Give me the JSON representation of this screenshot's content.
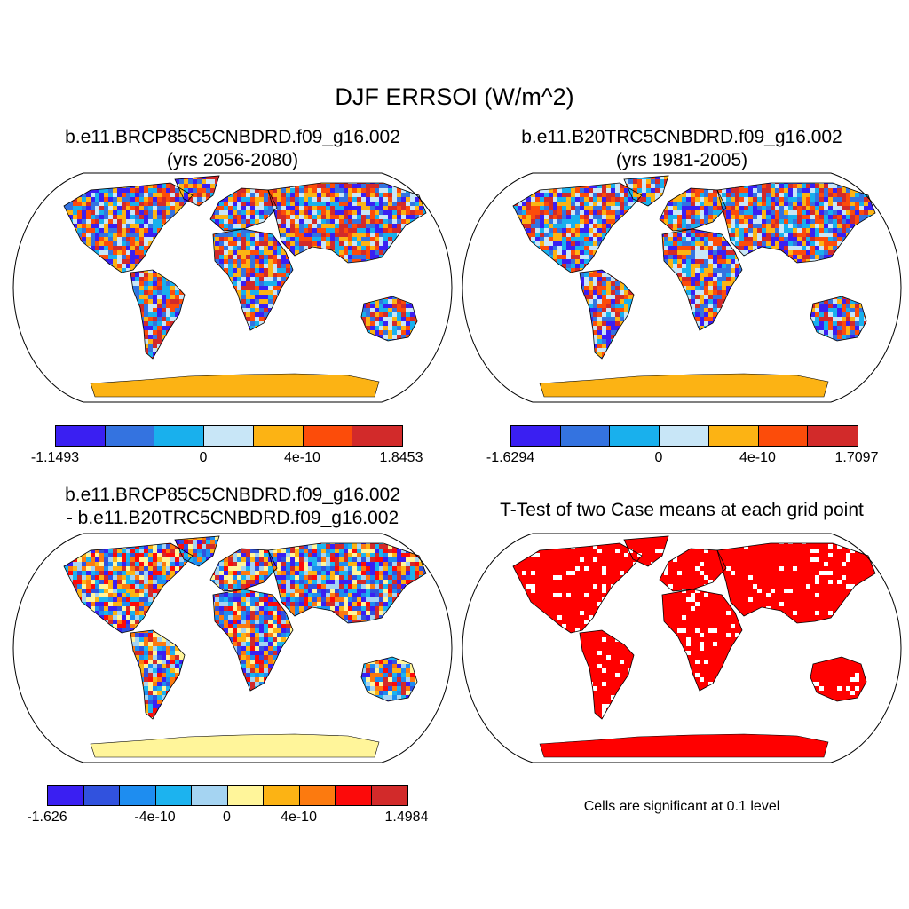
{
  "title": "DJF ERRSOI (W/m^2)",
  "panels": [
    {
      "line1": "b.e11.BRCP85C5CNBDRD.f09_g16.002",
      "line2": "(yrs 2056-2080)"
    },
    {
      "line1": "b.e11.B20TRC5CNBDRD.f09_g16.002",
      "line2": "(yrs 1981-2005)"
    },
    {
      "line1": "b.e11.BRCP85C5CNBDRD.f09_g16.002",
      "line2": "- b.e11.B20TRC5CNBDRD.f09_g16.002"
    },
    {
      "line1": "T-Test of two Case means at each grid point",
      "line2": ""
    }
  ],
  "colorbars": [
    {
      "colors": [
        "#3a1ff2",
        "#3473e0",
        "#19b0ed",
        "#c8e6f7",
        "#fcb314",
        "#fc4c0a",
        "#d22a2a"
      ],
      "ticks": [
        {
          "label": "-1.1493",
          "pos": 0
        },
        {
          "label": "0",
          "pos": 0.428
        },
        {
          "label": "4e-10",
          "pos": 0.714
        },
        {
          "label": "1.8453",
          "pos": 1
        }
      ]
    },
    {
      "colors": [
        "#3a1ff2",
        "#3473e0",
        "#19b0ed",
        "#c8e6f7",
        "#fcb314",
        "#fc4c0a",
        "#d22a2a"
      ],
      "ticks": [
        {
          "label": "-1.6294",
          "pos": 0
        },
        {
          "label": "0",
          "pos": 0.428
        },
        {
          "label": "4e-10",
          "pos": 0.714
        },
        {
          "label": "1.7097",
          "pos": 1
        }
      ]
    },
    {
      "colors": [
        "#3a1ff2",
        "#3152de",
        "#1e8df0",
        "#1cb3ef",
        "#a5d4f2",
        "#fff59a",
        "#fcb314",
        "#fc7a0f",
        "#fc0a0a",
        "#d22a2a"
      ],
      "ticks": [
        {
          "label": "-1.626",
          "pos": 0
        },
        {
          "label": "-4e-10",
          "pos": 0.3
        },
        {
          "label": "0",
          "pos": 0.5
        },
        {
          "label": "4e-10",
          "pos": 0.7
        },
        {
          "label": "1.4984",
          "pos": 1
        }
      ]
    }
  ],
  "note": "Cells are significant at 0.1 level",
  "palette": {
    "ttest_fill": "#ff0000",
    "antarctic_1": "#fcb314",
    "antarctic_3": "#fff59a"
  }
}
